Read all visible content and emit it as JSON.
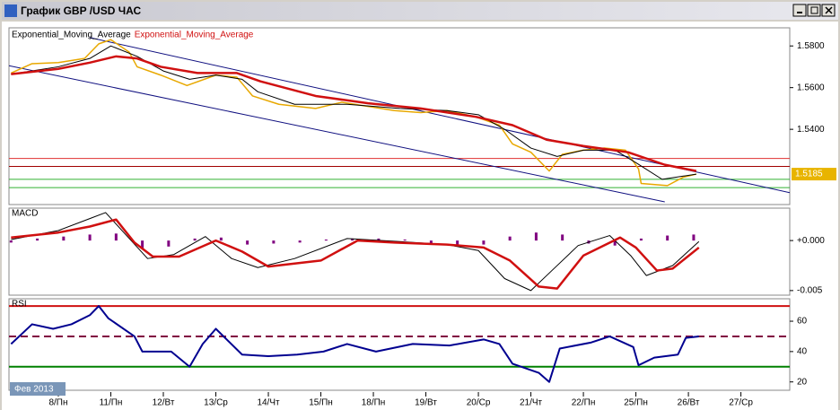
{
  "window": {
    "title": "График GBP /USD ЧАС"
  },
  "x_axis": {
    "xlim": [
      -0.94,
      13.93
    ],
    "xticks": [
      {
        "value": 0,
        "label": "8/Пн"
      },
      {
        "value": 1,
        "label": "11/Пн"
      },
      {
        "value": 2,
        "label": "12/Вт"
      },
      {
        "value": 3,
        "label": "13/Ср"
      },
      {
        "value": 4,
        "label": "14/Чт"
      },
      {
        "value": 5,
        "label": "15/Пн"
      },
      {
        "value": 6,
        "label": "18/Пн"
      },
      {
        "value": 7,
        "label": "19/Вт"
      },
      {
        "value": 8,
        "label": "20/Ср"
      },
      {
        "value": 9,
        "label": "21/Чт"
      },
      {
        "value": 10,
        "label": "22/Пн"
      },
      {
        "value": 11,
        "label": "25/Пн"
      },
      {
        "value": 12,
        "label": "26/Вт"
      },
      {
        "value": 13,
        "label": "27/Ср"
      }
    ],
    "period": "Фев 2013"
  },
  "chart_data": [
    {
      "type": "line",
      "ylim": [
        1.5039,
        1.5887
      ],
      "yticks": [
        {
          "value": 1.58,
          "label": "1.5800"
        },
        {
          "value": 1.56,
          "label": "1.5600"
        },
        {
          "value": 1.54,
          "label": "1.5400"
        }
      ],
      "last_price": 1.5185,
      "last_price_color": "#e8b400",
      "hlines": [
        {
          "value": 1.526,
          "color": "#e03030"
        },
        {
          "value": 1.5222,
          "color": "#a00000"
        },
        {
          "value": 1.516,
          "color": "#30b030"
        },
        {
          "value": 1.512,
          "color": "#30b030"
        }
      ],
      "trendlines": [
        {
          "color": "#101080",
          "x": [
            0.6,
            13.93
          ],
          "values": [
            1.584,
            1.5096
          ]
        },
        {
          "color": "#101080",
          "x": [
            -0.94,
            11.55
          ],
          "values": [
            1.5705,
            1.5052
          ]
        }
      ],
      "series": [
        {
          "color": "#e8a800",
          "width": 1.5,
          "x": [
            -0.9,
            -0.5,
            0,
            0.5,
            0.77,
            1,
            1.35,
            1.5,
            1.95,
            2.45,
            3,
            3.4,
            3.7,
            4.2,
            4.9,
            5.4,
            5.9,
            6.4,
            6.9,
            7.4,
            7.95,
            8.4,
            8.65,
            9,
            9.35,
            9.6,
            10,
            10.4,
            10.8,
            11.05,
            11.1,
            11.6,
            11.9,
            12.15
          ],
          "values": [
            1.567,
            1.5715,
            1.572,
            1.574,
            1.581,
            1.583,
            1.577,
            1.57,
            1.566,
            1.561,
            1.566,
            1.565,
            1.556,
            1.552,
            1.55,
            1.553,
            1.551,
            1.549,
            1.548,
            1.549,
            1.546,
            1.542,
            1.533,
            1.529,
            1.52,
            1.528,
            1.53,
            1.531,
            1.53,
            1.521,
            1.514,
            1.513,
            1.517,
            1.5185
          ]
        },
        {
          "name": "Exponential_Moving_Average",
          "color": "#000000",
          "width": 1,
          "x": [
            -0.9,
            0,
            0.6,
            1.0,
            1.5,
            2.0,
            2.5,
            3.0,
            3.5,
            3.8,
            4.5,
            5.5,
            6.5,
            7.4,
            8.0,
            8.5,
            9.0,
            9.5,
            10.0,
            10.6,
            11.0,
            11.5,
            12.15
          ],
          "values": [
            1.5665,
            1.57,
            1.574,
            1.58,
            1.575,
            1.568,
            1.564,
            1.566,
            1.564,
            1.558,
            1.552,
            1.552,
            1.55,
            1.549,
            1.547,
            1.54,
            1.531,
            1.527,
            1.53,
            1.53,
            1.524,
            1.516,
            1.5185
          ]
        },
        {
          "name": "Exponential_Moving_Average",
          "color": "#d01010",
          "width": 2.5,
          "x": [
            -0.9,
            0,
            0.6,
            1.1,
            1.5,
            1.95,
            2.65,
            3.4,
            3.85,
            4.9,
            5.9,
            6.9,
            7.95,
            8.65,
            9.3,
            10,
            10.85,
            11.55,
            12.15
          ],
          "values": [
            1.5665,
            1.569,
            1.572,
            1.575,
            1.574,
            1.57,
            1.567,
            1.567,
            1.563,
            1.556,
            1.5525,
            1.55,
            1.546,
            1.542,
            1.535,
            1.532,
            1.529,
            1.523,
            1.52
          ]
        }
      ]
    },
    {
      "type": "line",
      "title": "MACD",
      "ylim": [
        -0.00546,
        0.00324
      ],
      "yticks": [
        {
          "value": 0,
          "label": "+0.000"
        },
        -0.005
      ],
      "series": [
        {
          "type": "bar",
          "color": "#800080",
          "x": [
            -0.9,
            -0.4,
            0.1,
            0.6,
            1.1,
            1.6,
            2.1,
            2.6,
            3.1,
            3.6,
            4.1,
            4.6,
            5.1,
            5.6,
            6.1,
            6.6,
            7.1,
            7.6,
            8.1,
            8.6,
            9.1,
            9.6,
            10.1,
            10.6,
            11.1,
            11.6,
            12.1
          ],
          "values": [
            -0.0002,
            0.0002,
            0.0004,
            0.0006,
            0.0007,
            -0.0008,
            -0.0006,
            0.0002,
            0.0003,
            -0.0004,
            -0.0003,
            -0.0002,
            0.0001,
            0.0002,
            0.0002,
            0.0001,
            -0.0003,
            -0.0006,
            -0.0004,
            0.0004,
            0.0008,
            0.0006,
            -0.0003,
            -0.0005,
            0.0002,
            0.0005,
            0.0006
          ]
        },
        {
          "color": "#000000",
          "width": 1,
          "x": [
            -0.9,
            0,
            0.6,
            0.9,
            1.3,
            1.7,
            2.2,
            2.8,
            3.3,
            3.8,
            4.5,
            5.5,
            6.5,
            7.4,
            8.0,
            8.5,
            9.0,
            9.4,
            9.9,
            10.5,
            10.9,
            11.2,
            11.7,
            12.2
          ],
          "values": [
            0.0001,
            0.001,
            0.0022,
            0.0028,
            0.0005,
            -0.0018,
            -0.0014,
            0.0004,
            -0.0018,
            -0.0027,
            -0.0018,
            0.0002,
            -0.0001,
            -0.0004,
            -0.001,
            -0.0038,
            -0.005,
            -0.003,
            -0.0005,
            0.0005,
            -0.0015,
            -0.0035,
            -0.0025,
            -0.0001
          ]
        },
        {
          "color": "#d01010",
          "width": 2.5,
          "x": [
            -0.9,
            0,
            0.6,
            1.1,
            1.45,
            1.8,
            2.3,
            3.0,
            3.5,
            4.0,
            5.0,
            5.7,
            6.4,
            7.4,
            8.1,
            8.6,
            9.15,
            9.5,
            10.0,
            10.7,
            11.0,
            11.4,
            11.7,
            12.2
          ],
          "values": [
            0.0003,
            0.0008,
            0.0014,
            0.0021,
            -0.0002,
            -0.0016,
            -0.0016,
            0,
            -0.0011,
            -0.0026,
            -0.002,
            0,
            -0.0002,
            -0.0004,
            -0.0007,
            -0.002,
            -0.0046,
            -0.0048,
            -0.0015,
            0.0003,
            -0.0007,
            -0.003,
            -0.0028,
            -0.0007
          ]
        }
      ]
    },
    {
      "type": "line",
      "title": "RSI",
      "ylim": [
        14.5,
        74.8
      ],
      "yticks": [
        60,
        40,
        20
      ],
      "hlines": [
        {
          "value": 70,
          "color": "#d01010"
        },
        {
          "value": 50,
          "color": "#800040",
          "dash": true
        },
        {
          "value": 30,
          "color": "#008000"
        }
      ],
      "series": [
        {
          "color": "#000090",
          "width": 2,
          "x": [
            -0.9,
            -0.5,
            -0.1,
            0.25,
            0.6,
            0.77,
            0.95,
            1.45,
            1.6,
            2.15,
            2.5,
            2.75,
            3.0,
            3.5,
            4.0,
            4.55,
            5.05,
            5.5,
            6.05,
            6.75,
            7.45,
            8.1,
            8.4,
            8.65,
            9.15,
            9.35,
            9.55,
            10.15,
            10.5,
            10.95,
            11.05,
            11.35,
            11.8,
            11.95,
            12.2
          ],
          "values": [
            45,
            58,
            55,
            58,
            64,
            70,
            62,
            50,
            40,
            40,
            30,
            45,
            55,
            38,
            37,
            38,
            40,
            45,
            40,
            45,
            44,
            48,
            45,
            32,
            26,
            20,
            42,
            46,
            50,
            43,
            31,
            36,
            38,
            49,
            50
          ]
        }
      ]
    }
  ]
}
